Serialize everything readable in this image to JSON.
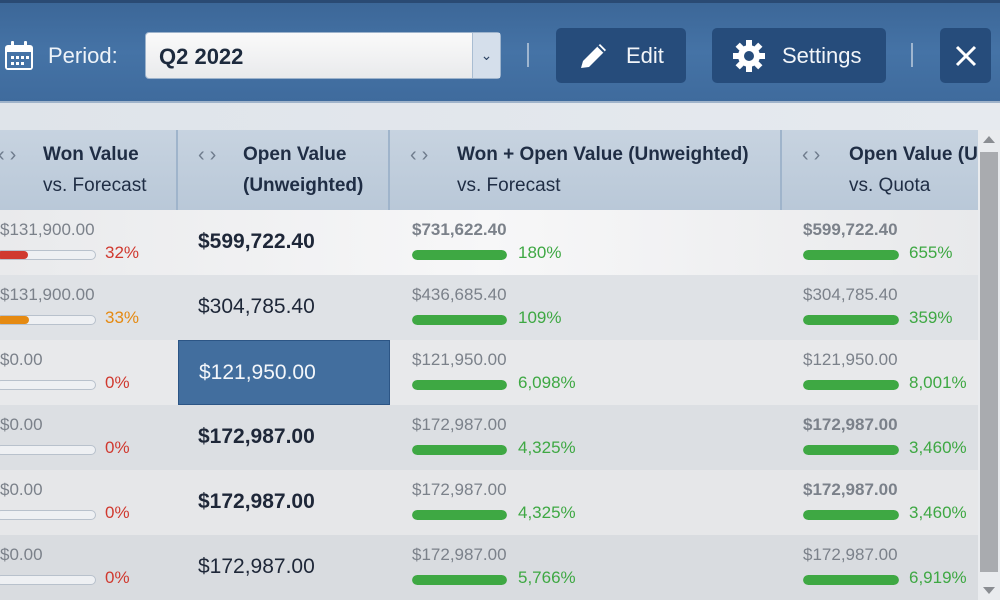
{
  "toolbar": {
    "period_label": "Period:",
    "period_value": "Q2 2022",
    "edit_label": "Edit",
    "settings_label": "Settings",
    "icons": [
      "calendar-icon",
      "chevron-down-icon",
      "pencil-icon",
      "gear-icon",
      "close-icon"
    ]
  },
  "colors": {
    "toolbar": "#3f6b9d",
    "button": "#264c7b",
    "green": "#3ea843",
    "red": "#d0392f",
    "orange": "#e58a12",
    "selected": "#426e9e"
  },
  "columns": [
    {
      "title": "Won Value",
      "subtitle": "vs. Forecast"
    },
    {
      "title": "Open Value",
      "subtitle": "(Unweighted)"
    },
    {
      "title": "Won + Open Value (Unweighted)",
      "subtitle": "vs. Forecast"
    },
    {
      "title": "Open Value (U",
      "subtitle": "vs. Quota"
    }
  ],
  "rows": [
    {
      "won": "$131,900.00",
      "won_pct": "32%",
      "won_progress": 32,
      "won_status": "red",
      "open": "$599,722.40",
      "bold": true,
      "wo": "$731,622.40",
      "wo_pct": "180%",
      "ov": "$599,722.40",
      "ov_pct": "655%"
    },
    {
      "won": "$131,900.00",
      "won_pct": "33%",
      "won_progress": 33,
      "won_status": "orange",
      "open": "$304,785.40",
      "bold": false,
      "wo": "$436,685.40",
      "wo_pct": "109%",
      "ov": "$304,785.40",
      "ov_pct": "359%"
    },
    {
      "won": "$0.00",
      "won_pct": "0%",
      "won_progress": 0,
      "won_status": "red",
      "open": "$121,950.00",
      "bold": false,
      "selected": true,
      "wo": "$121,950.00",
      "wo_pct": "6,098%",
      "ov": "$121,950.00",
      "ov_pct": "8,001%"
    },
    {
      "won": "$0.00",
      "won_pct": "0%",
      "won_progress": 0,
      "won_status": "red",
      "open": "$172,987.00",
      "bold": true,
      "wo": "$172,987.00",
      "wo_pct": "4,325%",
      "ov": "$172,987.00",
      "ov_pct": "3,460%"
    },
    {
      "won": "$0.00",
      "won_pct": "0%",
      "won_progress": 0,
      "won_status": "red",
      "open": "$172,987.00",
      "bold": true,
      "wo": "$172,987.00",
      "wo_pct": "4,325%",
      "ov": "$172,987.00",
      "ov_pct": "3,460%"
    },
    {
      "won": "$0.00",
      "won_pct": "0%",
      "won_progress": 0,
      "won_status": "red",
      "open": "$172,987.00",
      "bold": false,
      "wo": "$172,987.00",
      "wo_pct": "5,766%",
      "ov": "$172,987.00",
      "ov_pct": "6,919%"
    }
  ]
}
